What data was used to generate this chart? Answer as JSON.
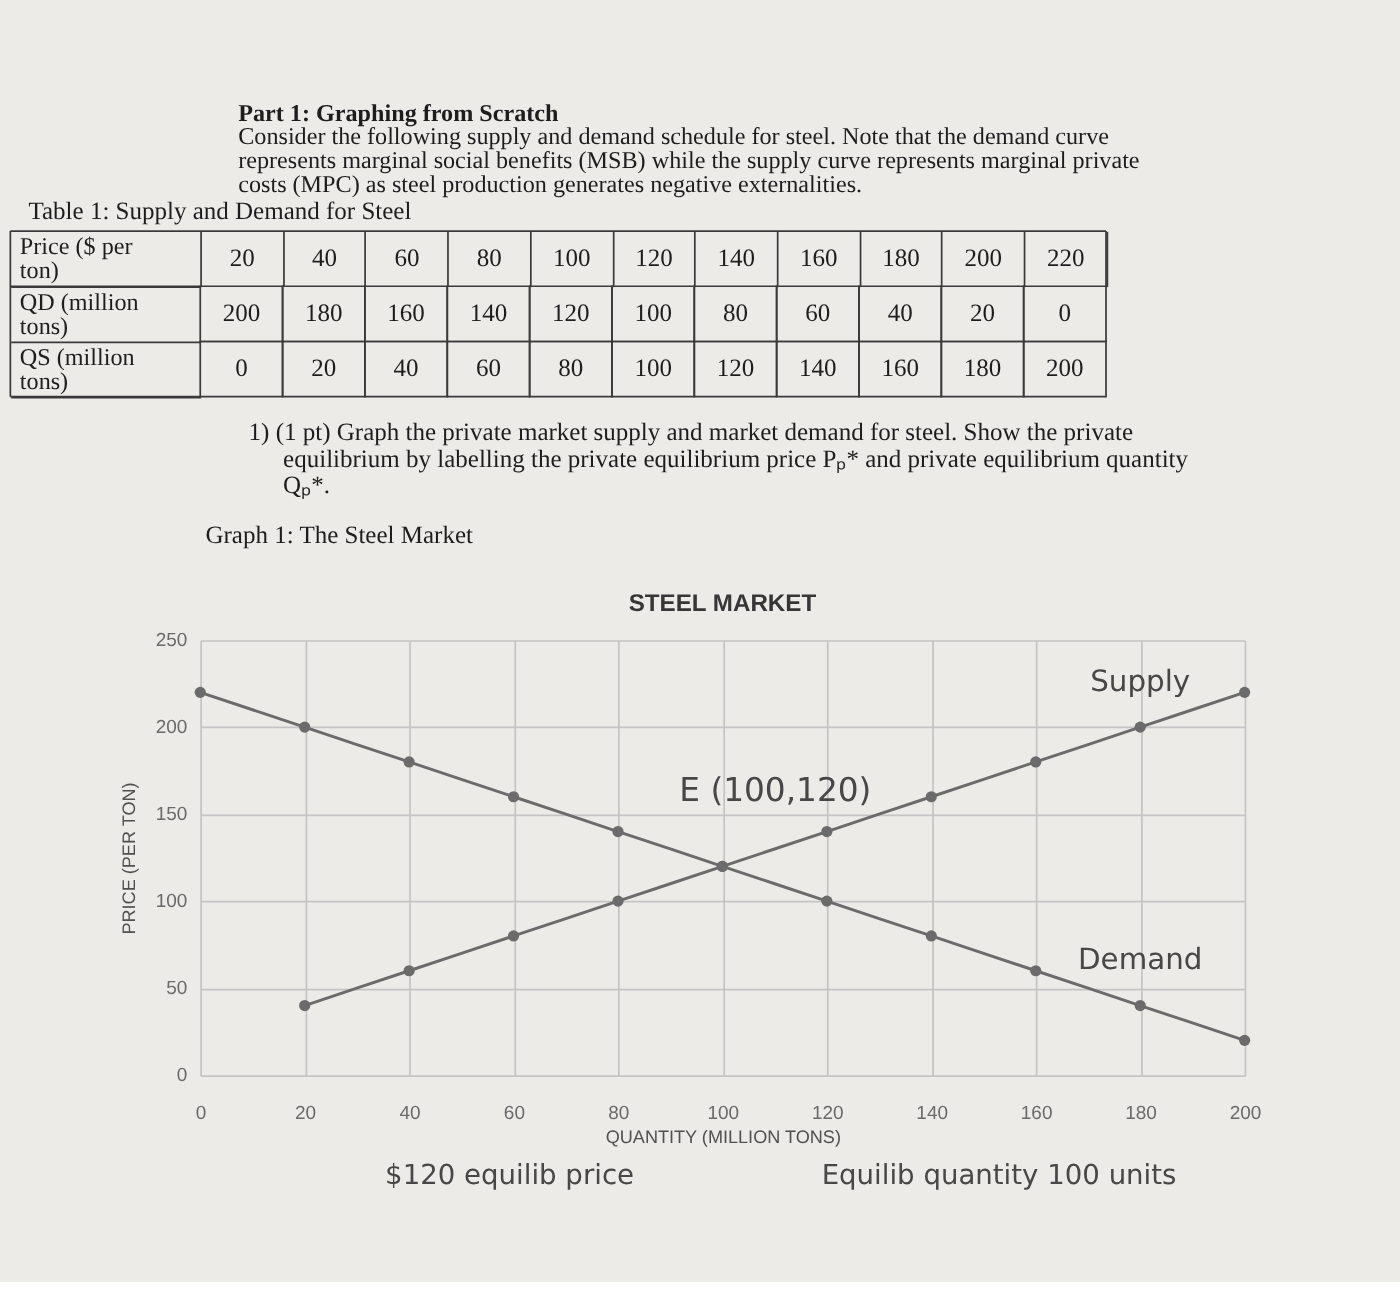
{
  "chart_data": [
    {
      "type": "other",
      "title": "Part 1: Graphing from Scratch",
      "subtitle": "Consider the following supply and demand schedule for steel. Note that the demand curve represents marginal social benefits (MSB) while the supply curve represents marginal private costs (MPC) as steel production generates negative externalities."
    },
    {
      "type": "heatmap",
      "title": "Table 1: Supply and Demand for Steel",
      "xlabel": "Price ($ per ton)",
      "categories": [
        "20",
        "40",
        "60",
        "80",
        "100",
        "120",
        "140",
        "160",
        "180",
        "200",
        "220"
      ],
      "y_categories": [
        "QD (million tons)",
        "QS (million tons)"
      ],
      "cells": [
        [
          200,
          180,
          160,
          140,
          120,
          100,
          80,
          60,
          40,
          20,
          0
        ],
        [
          0,
          20,
          40,
          60,
          80,
          100,
          120,
          140,
          160,
          180,
          200
        ]
      ],
      "data_labels": true
    },
    {
      "type": "other",
      "annotations": [
        "1) (1 pt) Graph the private market supply and market demand for steel. Show the private equilibrium by labelling the private equilibrium price Pₚ* and private equilibrium quantity Qₚ*.",
        "Graph 1: The Steel Market"
      ]
    },
    {
      "type": "line",
      "title": "STEEL MARKET",
      "xlabel": "QUANTITY (MILLION TONS)",
      "ylabel": "PRICE (PER TON)",
      "xlim": [
        0,
        200
      ],
      "xticks": [
        0,
        20,
        40,
        60,
        80,
        100,
        120,
        140,
        160,
        180,
        200
      ],
      "ylim": [
        0,
        250
      ],
      "yticks": [
        0,
        50,
        100,
        150,
        200,
        250
      ],
      "grid": true,
      "marker": "circle",
      "series": [
        {
          "name": "Supply",
          "color": "#6b6b6b",
          "x": [
            20,
            40,
            60,
            80,
            100,
            120,
            140,
            160,
            180,
            200
          ],
          "values": [
            40,
            60,
            80,
            100,
            120,
            140,
            160,
            180,
            200,
            220
          ]
        },
        {
          "name": "Demand",
          "color": "#6b6b6b",
          "x": [
            0,
            20,
            40,
            60,
            80,
            100,
            120,
            140,
            160,
            180,
            200
          ],
          "values": [
            220,
            200,
            180,
            160,
            140,
            120,
            100,
            80,
            60,
            40,
            20
          ]
        }
      ],
      "annotations": [
        {
          "text": "E (100,120)",
          "x": 100,
          "y": 120
        },
        "$120 equilib price",
        "Equilib quantity 100 units"
      ]
    }
  ]
}
